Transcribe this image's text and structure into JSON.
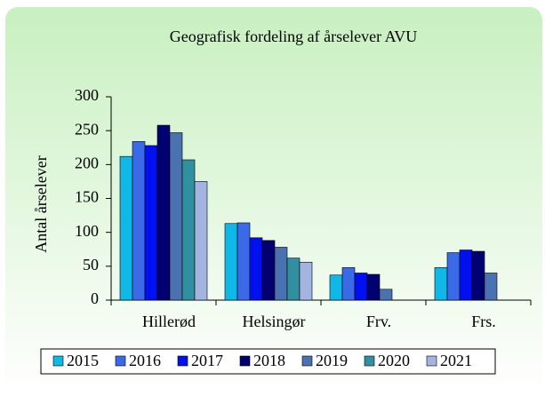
{
  "chart_data": {
    "type": "bar",
    "title": "Geografisk fordeling af årselever AVU",
    "y_label": "Antal årselever",
    "categories": [
      "Hillerød",
      "Helsingør",
      "Frv.",
      "Frs."
    ],
    "series": [
      {
        "name": "2015",
        "color": "#10b8e8",
        "values": [
          212,
          113,
          37,
          48
        ]
      },
      {
        "name": "2016",
        "color": "#3a6ae8",
        "values": [
          234,
          114,
          48,
          70
        ]
      },
      {
        "name": "2017",
        "color": "#0010f0",
        "values": [
          228,
          92,
          40,
          74
        ]
      },
      {
        "name": "2018",
        "color": "#000070",
        "values": [
          258,
          88,
          38,
          72
        ]
      },
      {
        "name": "2019",
        "color": "#4a72b0",
        "values": [
          247,
          78,
          16,
          40
        ]
      },
      {
        "name": "2020",
        "color": "#3090a0",
        "values": [
          207,
          62,
          null,
          null
        ]
      },
      {
        "name": "2021",
        "color": "#a4b4e0",
        "values": [
          175,
          56,
          null,
          null
        ]
      }
    ],
    "ylim": [
      0,
      300
    ],
    "yticks": [
      0,
      50,
      100,
      150,
      200,
      250,
      300
    ],
    "legend": "bottom"
  }
}
